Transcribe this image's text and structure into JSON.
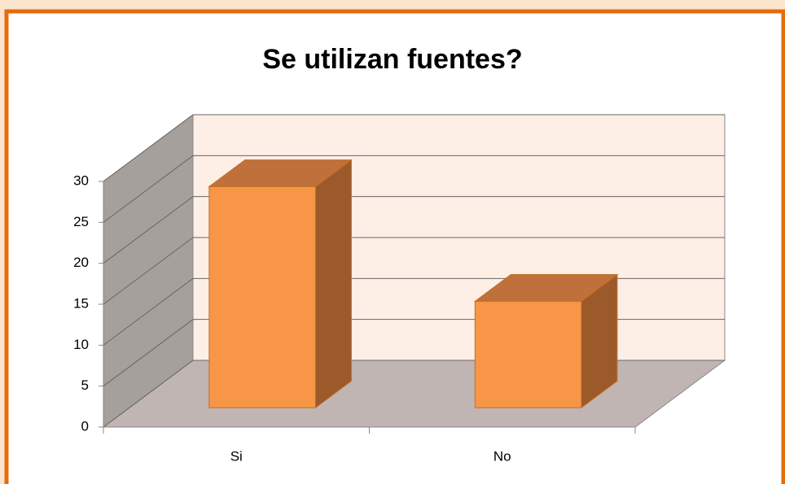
{
  "chart_data": {
    "type": "bar3d",
    "title": "Se utilizan fuentes?",
    "categories": [
      "Si",
      "No"
    ],
    "values": [
      27,
      13
    ],
    "color": "#f79646",
    "ylim": [
      0,
      30
    ],
    "yticks": [
      0,
      5,
      10,
      15,
      20,
      25,
      30
    ],
    "grid": true
  }
}
